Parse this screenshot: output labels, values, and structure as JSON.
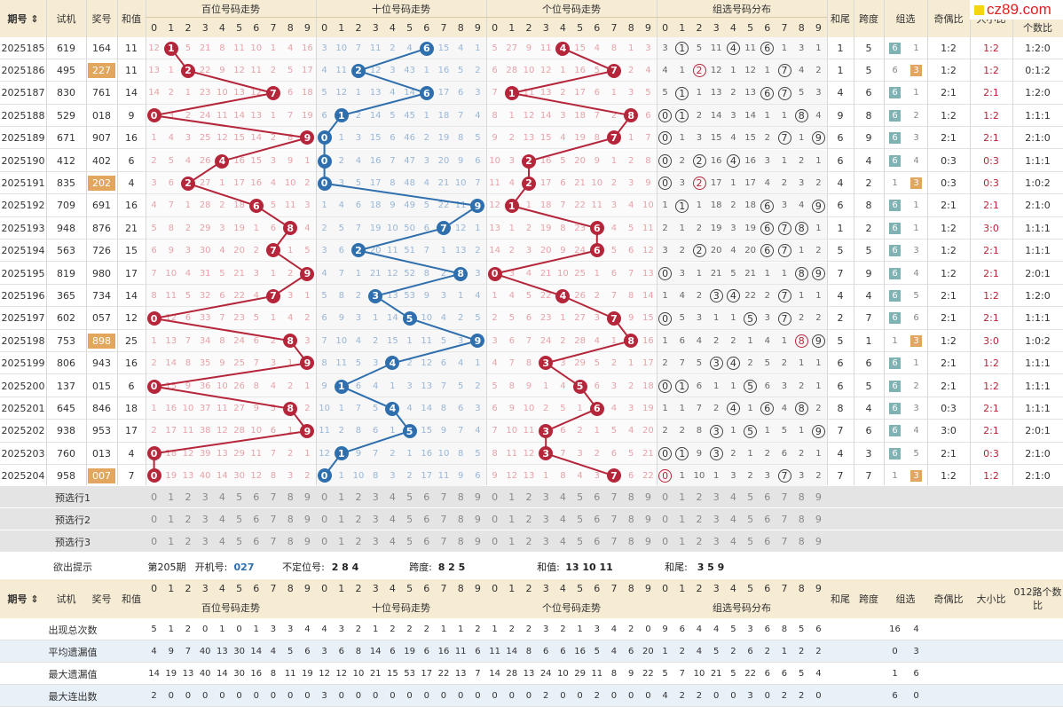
{
  "logo": "cz89.com",
  "header": {
    "period": "期号",
    "trial": "试机",
    "prize": "奖号",
    "sum": "和值",
    "hundreds": "百位号码走势",
    "tens": "十位号码走势",
    "units": "个位号码走势",
    "group_dist": "组选号码分布",
    "tail": "和尾",
    "span": "跨度",
    "group": "组选",
    "odd_even": "奇偶比",
    "big_small": "大小比",
    "route": "012路个数比",
    "route_top": "个数比"
  },
  "digits": [
    "0",
    "1",
    "2",
    "3",
    "4",
    "5",
    "6",
    "7",
    "8",
    "9"
  ],
  "rows": [
    {
      "period": "2025185",
      "trial": "619",
      "prize": "164",
      "sum": "11",
      "h": 1,
      "t": 6,
      "u": 4,
      "tail": "1",
      "span": "5",
      "g6": "6",
      "g3": "1",
      "oe": "1:2",
      "bs": "1:2",
      "route": "1:2:0"
    },
    {
      "period": "2025186",
      "trial": "495",
      "prize": "227",
      "sum": "11",
      "h": 2,
      "t": 2,
      "u": 7,
      "tail": "1",
      "span": "5",
      "g6": "6",
      "g3": "3",
      "oe": "1:2",
      "bs": "1:2",
      "route": "0:1:2",
      "pair": true
    },
    {
      "period": "2025187",
      "trial": "830",
      "prize": "761",
      "sum": "14",
      "h": 7,
      "t": 6,
      "u": 1,
      "tail": "4",
      "span": "6",
      "g6": "6",
      "g3": "1",
      "oe": "2:1",
      "bs": "2:1",
      "route": "1:2:0"
    },
    {
      "period": "2025188",
      "trial": "529",
      "prize": "018",
      "sum": "9",
      "h": 0,
      "t": 1,
      "u": 8,
      "tail": "9",
      "span": "8",
      "g6": "6",
      "g3": "2",
      "oe": "1:2",
      "bs": "1:2",
      "route": "1:1:1"
    },
    {
      "period": "2025189",
      "trial": "671",
      "prize": "907",
      "sum": "16",
      "h": 9,
      "t": 0,
      "u": 7,
      "tail": "6",
      "span": "9",
      "g6": "6",
      "g3": "3",
      "oe": "2:1",
      "bs": "2:1",
      "route": "2:1:0"
    },
    {
      "period": "2025190",
      "trial": "412",
      "prize": "402",
      "sum": "6",
      "h": 4,
      "t": 0,
      "u": 2,
      "tail": "6",
      "span": "4",
      "g6": "6",
      "g3": "4",
      "oe": "0:3",
      "bs": "0:3",
      "route": "1:1:1"
    },
    {
      "period": "2025191",
      "trial": "835",
      "prize": "202",
      "sum": "4",
      "h": 2,
      "t": 0,
      "u": 2,
      "tail": "4",
      "span": "2",
      "g6": "1",
      "g3": "3",
      "oe": "0:3",
      "bs": "0:3",
      "route": "1:0:2",
      "pair": true
    },
    {
      "period": "2025192",
      "trial": "709",
      "prize": "691",
      "sum": "16",
      "h": 6,
      "t": 9,
      "u": 1,
      "tail": "6",
      "span": "8",
      "g6": "6",
      "g3": "1",
      "oe": "2:1",
      "bs": "2:1",
      "route": "2:1:0"
    },
    {
      "period": "2025193",
      "trial": "948",
      "prize": "876",
      "sum": "21",
      "h": 8,
      "t": 7,
      "u": 6,
      "tail": "1",
      "span": "2",
      "g6": "6",
      "g3": "1",
      "oe": "1:2",
      "bs": "3:0",
      "route": "1:1:1"
    },
    {
      "period": "2025194",
      "trial": "563",
      "prize": "726",
      "sum": "15",
      "h": 7,
      "t": 2,
      "u": 6,
      "tail": "5",
      "span": "5",
      "g6": "6",
      "g3": "3",
      "oe": "1:2",
      "bs": "2:1",
      "route": "1:1:1"
    },
    {
      "period": "2025195",
      "trial": "819",
      "prize": "980",
      "sum": "17",
      "h": 9,
      "t": 8,
      "u": 0,
      "tail": "7",
      "span": "9",
      "g6": "6",
      "g3": "4",
      "oe": "1:2",
      "bs": "2:1",
      "route": "2:0:1"
    },
    {
      "period": "2025196",
      "trial": "365",
      "prize": "734",
      "sum": "14",
      "h": 7,
      "t": 3,
      "u": 4,
      "tail": "4",
      "span": "4",
      "g6": "6",
      "g3": "5",
      "oe": "2:1",
      "bs": "1:2",
      "route": "1:2:0"
    },
    {
      "period": "2025197",
      "trial": "602",
      "prize": "057",
      "sum": "12",
      "h": 0,
      "t": 5,
      "u": 7,
      "tail": "2",
      "span": "7",
      "g6": "6",
      "g3": "6",
      "oe": "2:1",
      "bs": "2:1",
      "route": "1:1:1"
    },
    {
      "period": "2025198",
      "trial": "753",
      "prize": "898",
      "sum": "25",
      "h": 8,
      "t": 9,
      "u": 8,
      "tail": "5",
      "span": "1",
      "g6": "1",
      "g3": "3",
      "oe": "1:2",
      "bs": "3:0",
      "route": "1:0:2",
      "pair": true
    },
    {
      "period": "2025199",
      "trial": "806",
      "prize": "943",
      "sum": "16",
      "h": 9,
      "t": 4,
      "u": 3,
      "tail": "6",
      "span": "6",
      "g6": "6",
      "g3": "1",
      "oe": "2:1",
      "bs": "1:2",
      "route": "1:1:1"
    },
    {
      "period": "2025200",
      "trial": "137",
      "prize": "015",
      "sum": "6",
      "h": 0,
      "t": 1,
      "u": 5,
      "tail": "6",
      "span": "5",
      "g6": "6",
      "g3": "2",
      "oe": "2:1",
      "bs": "1:2",
      "route": "1:1:1"
    },
    {
      "period": "2025201",
      "trial": "645",
      "prize": "846",
      "sum": "18",
      "h": 8,
      "t": 4,
      "u": 6,
      "tail": "8",
      "span": "4",
      "g6": "6",
      "g3": "3",
      "oe": "0:3",
      "bs": "2:1",
      "route": "1:1:1"
    },
    {
      "period": "2025202",
      "trial": "938",
      "prize": "953",
      "sum": "17",
      "h": 9,
      "t": 5,
      "u": 3,
      "tail": "7",
      "span": "6",
      "g6": "6",
      "g3": "4",
      "oe": "3:0",
      "bs": "2:1",
      "route": "2:0:1"
    },
    {
      "period": "2025203",
      "trial": "760",
      "prize": "013",
      "sum": "4",
      "h": 0,
      "t": 1,
      "u": 3,
      "tail": "4",
      "span": "3",
      "g6": "6",
      "g3": "5",
      "oe": "2:1",
      "bs": "0:3",
      "route": "2:1:0"
    },
    {
      "period": "2025204",
      "trial": "958",
      "prize": "007",
      "sum": "7",
      "h": 0,
      "t": 0,
      "u": 7,
      "tail": "7",
      "span": "7",
      "g6": "1",
      "g3": "3",
      "oe": "1:2",
      "bs": "1:2",
      "route": "2:1:0",
      "pair": true
    }
  ],
  "miss": {
    "hundreds": [
      [
        12,
        null,
        5,
        21,
        8,
        11,
        10,
        1,
        4,
        16
      ],
      [
        13,
        1,
        null,
        22,
        9,
        12,
        11,
        2,
        5,
        17
      ],
      [
        14,
        2,
        1,
        23,
        10,
        13,
        12,
        null,
        6,
        18
      ],
      [
        null,
        3,
        2,
        24,
        11,
        14,
        13,
        1,
        7,
        19
      ],
      [
        1,
        4,
        3,
        25,
        12,
        15,
        14,
        2,
        8,
        null
      ],
      [
        2,
        5,
        4,
        26,
        null,
        16,
        15,
        3,
        9,
        1
      ],
      [
        3,
        6,
        null,
        27,
        1,
        17,
        16,
        4,
        10,
        2
      ],
      [
        4,
        7,
        1,
        28,
        2,
        18,
        null,
        5,
        11,
        3
      ],
      [
        5,
        8,
        2,
        29,
        3,
        19,
        1,
        6,
        null,
        4
      ],
      [
        6,
        9,
        3,
        30,
        4,
        20,
        2,
        null,
        1,
        5
      ],
      [
        7,
        10,
        4,
        31,
        5,
        21,
        3,
        1,
        2,
        null
      ],
      [
        8,
        11,
        5,
        32,
        6,
        22,
        4,
        null,
        3,
        1
      ],
      [
        null,
        12,
        6,
        33,
        7,
        23,
        5,
        1,
        4,
        2
      ],
      [
        1,
        13,
        7,
        34,
        8,
        24,
        6,
        2,
        null,
        3
      ],
      [
        2,
        14,
        8,
        35,
        9,
        25,
        7,
        3,
        1,
        null
      ],
      [
        null,
        15,
        9,
        36,
        10,
        26,
        8,
        4,
        2,
        1
      ],
      [
        1,
        16,
        10,
        37,
        11,
        27,
        9,
        5,
        null,
        2
      ],
      [
        2,
        17,
        11,
        38,
        12,
        28,
        10,
        6,
        1,
        null
      ],
      [
        null,
        18,
        12,
        39,
        13,
        29,
        11,
        7,
        2,
        1
      ],
      [
        null,
        19,
        13,
        40,
        14,
        30,
        12,
        8,
        3,
        2
      ]
    ],
    "tens": [
      [
        3,
        10,
        7,
        11,
        2,
        4,
        null,
        15,
        4,
        1
      ],
      [
        4,
        11,
        null,
        12,
        3,
        43,
        1,
        16,
        5,
        2
      ],
      [
        5,
        12,
        1,
        13,
        4,
        14,
        null,
        17,
        6,
        3
      ],
      [
        6,
        null,
        2,
        14,
        5,
        45,
        1,
        18,
        7,
        4
      ],
      [
        null,
        1,
        3,
        15,
        6,
        46,
        2,
        19,
        8,
        5
      ],
      [
        null,
        2,
        4,
        16,
        7,
        47,
        3,
        20,
        9,
        6
      ],
      [
        null,
        3,
        5,
        17,
        8,
        48,
        4,
        21,
        10,
        7
      ],
      [
        1,
        4,
        6,
        18,
        9,
        49,
        5,
        22,
        11,
        null
      ],
      [
        2,
        5,
        7,
        19,
        10,
        50,
        6,
        null,
        12,
        1
      ],
      [
        3,
        6,
        null,
        20,
        11,
        51,
        7,
        1,
        13,
        2
      ],
      [
        4,
        7,
        1,
        21,
        12,
        52,
        8,
        2,
        null,
        3
      ],
      [
        5,
        8,
        2,
        null,
        13,
        53,
        9,
        3,
        1,
        4
      ],
      [
        6,
        9,
        3,
        1,
        14,
        null,
        10,
        4,
        2,
        5
      ],
      [
        7,
        10,
        4,
        2,
        15,
        1,
        11,
        5,
        3,
        null
      ],
      [
        8,
        11,
        5,
        3,
        null,
        2,
        12,
        6,
        4,
        1
      ],
      [
        9,
        null,
        6,
        4,
        1,
        3,
        13,
        7,
        5,
        2
      ],
      [
        10,
        1,
        7,
        5,
        null,
        4,
        14,
        8,
        6,
        3
      ],
      [
        11,
        2,
        8,
        6,
        1,
        null,
        15,
        9,
        7,
        4
      ],
      [
        12,
        null,
        9,
        7,
        2,
        1,
        16,
        10,
        8,
        5
      ],
      [
        null,
        1,
        10,
        8,
        3,
        2,
        17,
        11,
        9,
        6
      ]
    ],
    "units": [
      [
        5,
        27,
        9,
        11,
        null,
        15,
        4,
        8,
        1,
        3
      ],
      [
        6,
        28,
        10,
        12,
        1,
        16,
        5,
        null,
        2,
        4
      ],
      [
        7,
        null,
        11,
        13,
        2,
        17,
        6,
        1,
        3,
        5
      ],
      [
        8,
        1,
        12,
        14,
        3,
        18,
        7,
        2,
        null,
        6
      ],
      [
        9,
        2,
        13,
        15,
        4,
        19,
        8,
        null,
        1,
        7
      ],
      [
        10,
        3,
        null,
        16,
        5,
        20,
        9,
        1,
        2,
        8
      ],
      [
        11,
        4,
        null,
        17,
        6,
        21,
        10,
        2,
        3,
        9
      ],
      [
        12,
        null,
        1,
        18,
        7,
        22,
        11,
        3,
        4,
        10
      ],
      [
        13,
        1,
        2,
        19,
        8,
        23,
        null,
        4,
        5,
        11
      ],
      [
        14,
        2,
        3,
        20,
        9,
        24,
        null,
        5,
        6,
        12
      ],
      [
        null,
        3,
        4,
        21,
        10,
        25,
        1,
        6,
        7,
        13
      ],
      [
        1,
        4,
        5,
        22,
        null,
        26,
        2,
        7,
        8,
        14
      ],
      [
        2,
        5,
        6,
        23,
        1,
        27,
        3,
        null,
        9,
        15
      ],
      [
        3,
        6,
        7,
        24,
        2,
        28,
        4,
        1,
        null,
        16
      ],
      [
        4,
        7,
        8,
        null,
        3,
        29,
        5,
        2,
        1,
        17
      ],
      [
        5,
        8,
        9,
        1,
        4,
        null,
        6,
        3,
        2,
        18
      ],
      [
        6,
        9,
        10,
        2,
        5,
        1,
        null,
        4,
        3,
        19
      ],
      [
        7,
        10,
        11,
        null,
        6,
        2,
        1,
        5,
        4,
        20
      ],
      [
        8,
        11,
        12,
        null,
        7,
        3,
        2,
        6,
        5,
        21
      ],
      [
        9,
        12,
        13,
        1,
        8,
        4,
        3,
        null,
        6,
        22
      ]
    ],
    "group": [
      [
        3,
        null,
        5,
        11,
        null,
        11,
        null,
        1,
        3,
        1
      ],
      [
        4,
        1,
        null,
        12,
        1,
        12,
        1,
        null,
        4,
        2
      ],
      [
        5,
        null,
        1,
        13,
        2,
        13,
        null,
        null,
        5,
        3
      ],
      [
        null,
        null,
        2,
        14,
        3,
        14,
        1,
        1,
        null,
        4
      ],
      [
        null,
        1,
        3,
        15,
        4,
        15,
        2,
        null,
        1,
        null
      ],
      [
        null,
        2,
        null,
        16,
        null,
        16,
        3,
        1,
        2,
        1
      ],
      [
        null,
        3,
        null,
        17,
        1,
        17,
        4,
        2,
        3,
        2
      ],
      [
        1,
        null,
        1,
        18,
        2,
        18,
        null,
        3,
        4,
        null
      ],
      [
        2,
        1,
        2,
        19,
        3,
        19,
        null,
        null,
        null,
        1
      ],
      [
        3,
        2,
        null,
        20,
        4,
        20,
        null,
        null,
        1,
        2
      ],
      [
        null,
        3,
        1,
        21,
        5,
        21,
        1,
        1,
        null,
        null
      ],
      [
        1,
        4,
        2,
        null,
        null,
        22,
        2,
        null,
        1,
        1
      ],
      [
        null,
        5,
        3,
        1,
        1,
        null,
        3,
        null,
        2,
        2
      ],
      [
        1,
        6,
        4,
        2,
        2,
        1,
        4,
        1,
        null,
        null
      ],
      [
        2,
        7,
        5,
        null,
        null,
        2,
        5,
        2,
        1,
        1
      ],
      [
        null,
        null,
        6,
        1,
        1,
        null,
        6,
        3,
        2,
        1
      ],
      [
        1,
        1,
        7,
        2,
        null,
        1,
        null,
        4,
        null,
        2
      ],
      [
        2,
        2,
        8,
        null,
        1,
        null,
        1,
        5,
        1,
        null
      ],
      [
        null,
        null,
        9,
        null,
        2,
        1,
        2,
        6,
        2,
        1
      ],
      [
        null,
        1,
        10,
        1,
        3,
        2,
        3,
        null,
        3,
        2
      ]
    ]
  },
  "preselect": [
    "预选行1",
    "预选行2",
    "预选行3"
  ],
  "hint": {
    "label": "欲出提示",
    "period": "第205期",
    "trial_label": "开机号:",
    "trial": "027",
    "undet_label": "不定位号:",
    "undet": "2 8 4",
    "span_label": "跨度:",
    "span": "8 2 5",
    "sum_label": "和值:",
    "sum": "13 10 11",
    "tail_label": "和尾:",
    "tail": "3 5 9"
  },
  "stats": [
    {
      "label": "出现总次数",
      "values": [
        5,
        1,
        2,
        0,
        1,
        0,
        1,
        3,
        3,
        4,
        4,
        3,
        2,
        1,
        2,
        2,
        2,
        1,
        1,
        2,
        1,
        2,
        2,
        3,
        2,
        1,
        3,
        4,
        2,
        0,
        9,
        6,
        4,
        4,
        5,
        3,
        6,
        8,
        5,
        6
      ],
      "g6": "16",
      "g3": "4"
    },
    {
      "label": "平均遗漏值",
      "values": [
        4,
        9,
        7,
        40,
        13,
        30,
        14,
        4,
        5,
        6,
        3,
        6,
        8,
        14,
        6,
        19,
        6,
        16,
        11,
        6,
        11,
        14,
        8,
        6,
        6,
        16,
        5,
        4,
        6,
        20,
        1,
        2,
        4,
        5,
        2,
        6,
        2,
        1,
        2,
        2
      ],
      "g6": "0",
      "g3": "3"
    },
    {
      "label": "最大遗漏值",
      "values": [
        14,
        19,
        13,
        40,
        14,
        30,
        16,
        8,
        11,
        19,
        12,
        12,
        10,
        21,
        15,
        53,
        17,
        22,
        13,
        7,
        14,
        28,
        13,
        24,
        10,
        29,
        11,
        8,
        9,
        22,
        5,
        7,
        10,
        21,
        5,
        22,
        6,
        6,
        5,
        4
      ],
      "g6": "1",
      "g3": "6"
    },
    {
      "label": "最大连出数",
      "values": [
        2,
        0,
        0,
        0,
        0,
        0,
        0,
        0,
        0,
        0,
        3,
        0,
        0,
        0,
        0,
        0,
        0,
        0,
        0,
        0,
        0,
        0,
        0,
        2,
        0,
        0,
        2,
        0,
        0,
        0,
        4,
        2,
        2,
        0,
        0,
        3,
        0,
        2,
        2,
        0
      ],
      "g6": "6",
      "g3": "0"
    }
  ],
  "colors": {
    "red": "#b5263a",
    "blue": "#2f6fad",
    "orange": "#e2a65c",
    "teal": "#7fb3b3",
    "header_bg": "#f6ebd3",
    "stripe": "#e9f1f8"
  }
}
